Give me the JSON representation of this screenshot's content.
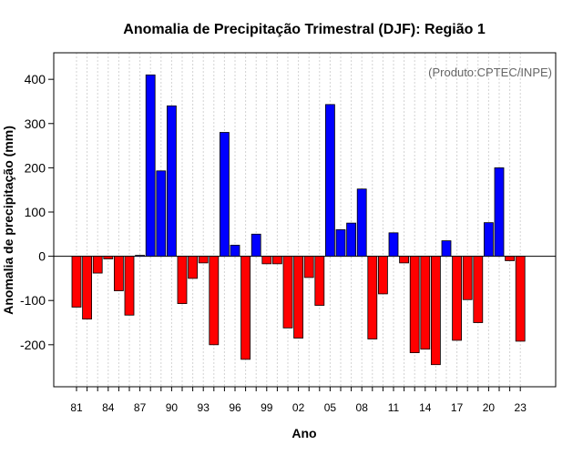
{
  "chart_data": {
    "type": "bar",
    "title": "Anomalia de Precipitação Trimestral (DJF): Região 1",
    "xlabel": "Ano",
    "ylabel": "Anomalia de precipitação (mm)",
    "credit": "(Produto:CPTEC/INPE)",
    "ylim": [
      -295,
      460
    ],
    "yticks": [
      -200,
      -100,
      0,
      100,
      200,
      300,
      400
    ],
    "xtick_labels": [
      "81",
      "84",
      "87",
      "90",
      "93",
      "96",
      "99",
      "02",
      "05",
      "08",
      "11",
      "14",
      "17",
      "20",
      "23"
    ],
    "categories": [
      "81",
      "82",
      "83",
      "84",
      "85",
      "86",
      "87",
      "88",
      "89",
      "90",
      "91",
      "92",
      "93",
      "94",
      "95",
      "96",
      "97",
      "98",
      "99",
      "00",
      "01",
      "02",
      "03",
      "04",
      "05",
      "06",
      "07",
      "08",
      "09",
      "10",
      "11",
      "12",
      "13",
      "14",
      "15",
      "16",
      "17",
      "18",
      "19",
      "20",
      "21",
      "22",
      "23"
    ],
    "values": [
      -115,
      -142,
      -38,
      -6,
      -78,
      -133,
      2,
      410,
      193,
      340,
      -107,
      -50,
      -15,
      -200,
      280,
      25,
      -233,
      50,
      -17,
      -17,
      -162,
      -185,
      -48,
      -111,
      343,
      60,
      75,
      152,
      -187,
      -85,
      53,
      -15,
      -218,
      -210,
      -245,
      35,
      -190,
      -98,
      -150,
      76,
      200,
      -10,
      -192
    ],
    "grid": true,
    "colors": {
      "positive": "#0000ff",
      "negative": "#ff0000",
      "grid": "#d3d3d3",
      "zero_line": "#000000"
    }
  }
}
